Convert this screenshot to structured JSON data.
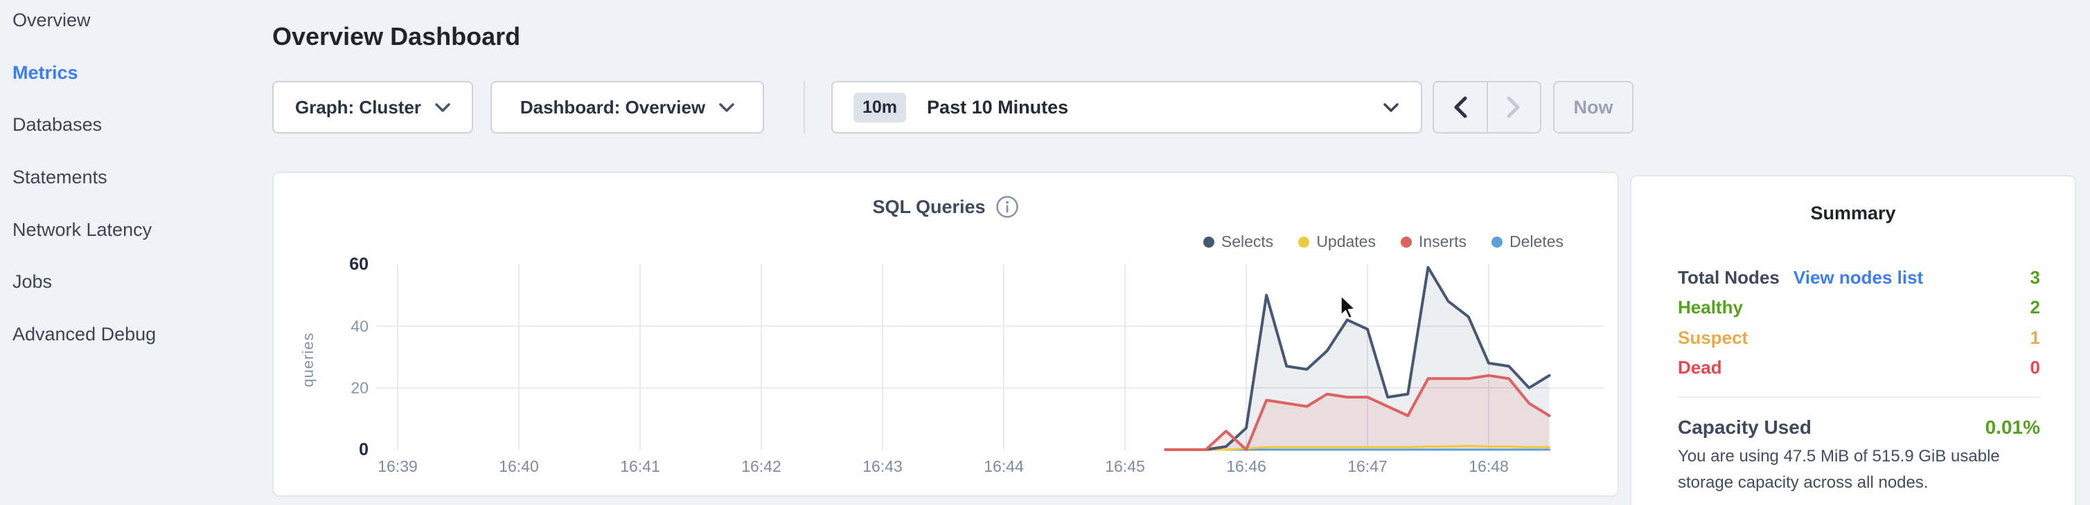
{
  "sidebar": {
    "items": [
      {
        "label": "Overview",
        "active": false
      },
      {
        "label": "Metrics",
        "active": true
      },
      {
        "label": "Databases",
        "active": false
      },
      {
        "label": "Statements",
        "active": false
      },
      {
        "label": "Network Latency",
        "active": false
      },
      {
        "label": "Jobs",
        "active": false
      },
      {
        "label": "Advanced Debug",
        "active": false
      }
    ]
  },
  "header": {
    "title": "Overview Dashboard"
  },
  "toolbar": {
    "graph_label": "Graph: Cluster",
    "dashboard_label": "Dashboard: Overview",
    "time_badge": "10m",
    "time_value": "Past 10 Minutes",
    "now_label": "Now"
  },
  "icons": {
    "dropdown": "chevron-down-icon",
    "info": "info-icon",
    "prev": "chevron-left-icon",
    "next": "chevron-right-icon",
    "cursor": "mouse-cursor"
  },
  "colors": {
    "accent_blue": "#3d7df2",
    "green": "#54a31e",
    "orange": "#eca94a",
    "red": "#e5484f",
    "disabled": "#9aa2b1"
  },
  "chart_data": {
    "type": "line",
    "title": "SQL Queries",
    "ylabel": "queries",
    "ylim": [
      0,
      60
    ],
    "y_ticks": [
      0,
      20,
      40,
      60
    ],
    "x_ticks": [
      "16:39",
      "16:40",
      "16:41",
      "16:42",
      "16:43",
      "16:44",
      "16:45",
      "16:46",
      "16:47",
      "16:48"
    ],
    "grid": true,
    "legend_position": "top-right",
    "series": [
      {
        "name": "Selects",
        "color": "#475872",
        "fill": "rgba(71,88,114,0.10)",
        "points": [
          [
            "16:45:20",
            0
          ],
          [
            "16:45:30",
            0
          ],
          [
            "16:45:40",
            0
          ],
          [
            "16:45:50",
            1
          ],
          [
            "16:46:00",
            7
          ],
          [
            "16:46:10",
            50
          ],
          [
            "16:46:20",
            27
          ],
          [
            "16:46:30",
            26
          ],
          [
            "16:46:40",
            32
          ],
          [
            "16:46:50",
            42
          ],
          [
            "16:47:00",
            39
          ],
          [
            "16:47:10",
            17
          ],
          [
            "16:47:20",
            18
          ],
          [
            "16:47:30",
            59
          ],
          [
            "16:47:40",
            48
          ],
          [
            "16:47:50",
            43
          ],
          [
            "16:48:00",
            28
          ],
          [
            "16:48:10",
            27
          ],
          [
            "16:48:20",
            20
          ],
          [
            "16:48:30",
            24
          ]
        ]
      },
      {
        "name": "Updates",
        "color": "#f0ca3e",
        "fill": null,
        "points": [
          [
            "16:45:20",
            0
          ],
          [
            "16:45:30",
            0
          ],
          [
            "16:45:40",
            0
          ],
          [
            "16:45:50",
            0
          ],
          [
            "16:46:00",
            0.4
          ],
          [
            "16:46:10",
            0.8
          ],
          [
            "16:46:20",
            0.8
          ],
          [
            "16:46:30",
            0.8
          ],
          [
            "16:46:40",
            0.8
          ],
          [
            "16:46:50",
            0.8
          ],
          [
            "16:47:00",
            0.8
          ],
          [
            "16:47:10",
            0.8
          ],
          [
            "16:47:20",
            0.8
          ],
          [
            "16:47:30",
            1
          ],
          [
            "16:47:40",
            1
          ],
          [
            "16:47:50",
            1.2
          ],
          [
            "16:48:00",
            1
          ],
          [
            "16:48:10",
            1
          ],
          [
            "16:48:20",
            0.8
          ],
          [
            "16:48:30",
            0.8
          ]
        ]
      },
      {
        "name": "Inserts",
        "color": "#dc6360",
        "fill": "rgba(220,99,96,0.12)",
        "points": [
          [
            "16:45:20",
            0
          ],
          [
            "16:45:30",
            0
          ],
          [
            "16:45:40",
            0
          ],
          [
            "16:45:50",
            6
          ],
          [
            "16:46:00",
            0
          ],
          [
            "16:46:10",
            16
          ],
          [
            "16:46:20",
            15
          ],
          [
            "16:46:30",
            14
          ],
          [
            "16:46:40",
            18
          ],
          [
            "16:46:50",
            17
          ],
          [
            "16:47:00",
            17
          ],
          [
            "16:47:10",
            14
          ],
          [
            "16:47:20",
            11
          ],
          [
            "16:47:30",
            23
          ],
          [
            "16:47:40",
            23
          ],
          [
            "16:47:50",
            23
          ],
          [
            "16:48:00",
            24
          ],
          [
            "16:48:10",
            23
          ],
          [
            "16:48:20",
            15
          ],
          [
            "16:48:30",
            11
          ]
        ]
      },
      {
        "name": "Deletes",
        "color": "#5c9fd3",
        "fill": null,
        "points": [
          [
            "16:45:20",
            0
          ],
          [
            "16:45:30",
            0
          ],
          [
            "16:45:40",
            0
          ],
          [
            "16:45:50",
            0
          ],
          [
            "16:46:00",
            0
          ],
          [
            "16:46:10",
            0
          ],
          [
            "16:46:20",
            0
          ],
          [
            "16:46:30",
            0
          ],
          [
            "16:46:40",
            0
          ],
          [
            "16:46:50",
            0
          ],
          [
            "16:47:00",
            0
          ],
          [
            "16:47:10",
            0
          ],
          [
            "16:47:20",
            0
          ],
          [
            "16:47:30",
            0
          ],
          [
            "16:47:40",
            0
          ],
          [
            "16:47:50",
            0
          ],
          [
            "16:48:00",
            0
          ],
          [
            "16:48:10",
            0
          ],
          [
            "16:48:20",
            0
          ],
          [
            "16:48:30",
            0
          ]
        ]
      }
    ]
  },
  "summary": {
    "title": "Summary",
    "rows": [
      {
        "label": "Total Nodes",
        "link": "View nodes list",
        "value": "3",
        "label_color": "#3e4a5b",
        "value_color": "#54a31e",
        "bold": true
      },
      {
        "label": "Healthy",
        "link": null,
        "value": "2",
        "label_color": "#54a31e",
        "value_color": "#54a31e",
        "bold": false
      },
      {
        "label": "Suspect",
        "link": null,
        "value": "1",
        "label_color": "#eca94a",
        "value_color": "#eca94a",
        "bold": false
      },
      {
        "label": "Dead",
        "link": null,
        "value": "0",
        "label_color": "#e5484f",
        "value_color": "#e5484f",
        "bold": false
      }
    ],
    "capacity_label": "Capacity Used",
    "capacity_value": "0.01%",
    "capacity_desc": "You are using 47.5 MiB of 515.9 GiB usable storage capacity across all nodes."
  }
}
